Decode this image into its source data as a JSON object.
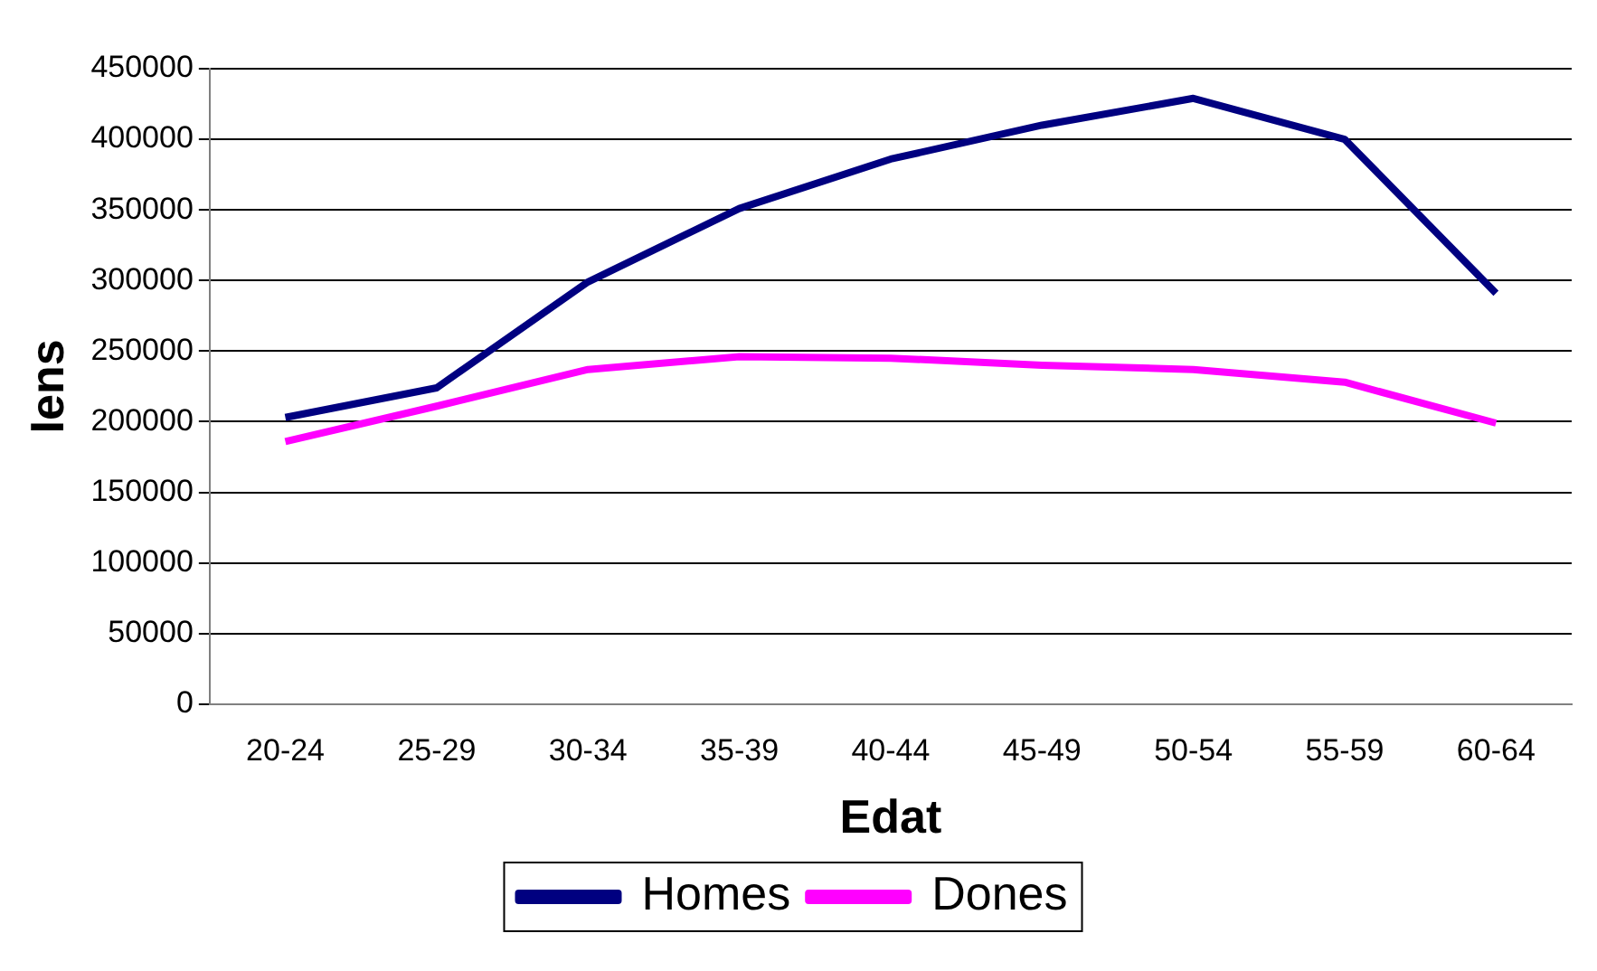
{
  "chart_data": {
    "type": "line",
    "xlabel": "Edat",
    "ylabel": "Iens",
    "categories": [
      "20-24",
      "25-29",
      "30-34",
      "35-39",
      "40-44",
      "45-49",
      "50-54",
      "55-59",
      "60-64"
    ],
    "series": [
      {
        "name": "Homes",
        "color": "#000080",
        "values": [
          203000,
          224000,
          299000,
          351000,
          386000,
          410000,
          429000,
          400000,
          291000
        ]
      },
      {
        "name": "Dones",
        "color": "#ff00ff",
        "values": [
          186000,
          211000,
          237000,
          246000,
          245000,
          240000,
          237000,
          228000,
          199000
        ]
      }
    ],
    "ylim": [
      0,
      450000
    ],
    "yticks": [
      0,
      50000,
      100000,
      150000,
      200000,
      250000,
      300000,
      350000,
      400000,
      450000
    ],
    "grid": "y",
    "legend": "bottom",
    "marker": "none",
    "line_style": "solid"
  }
}
